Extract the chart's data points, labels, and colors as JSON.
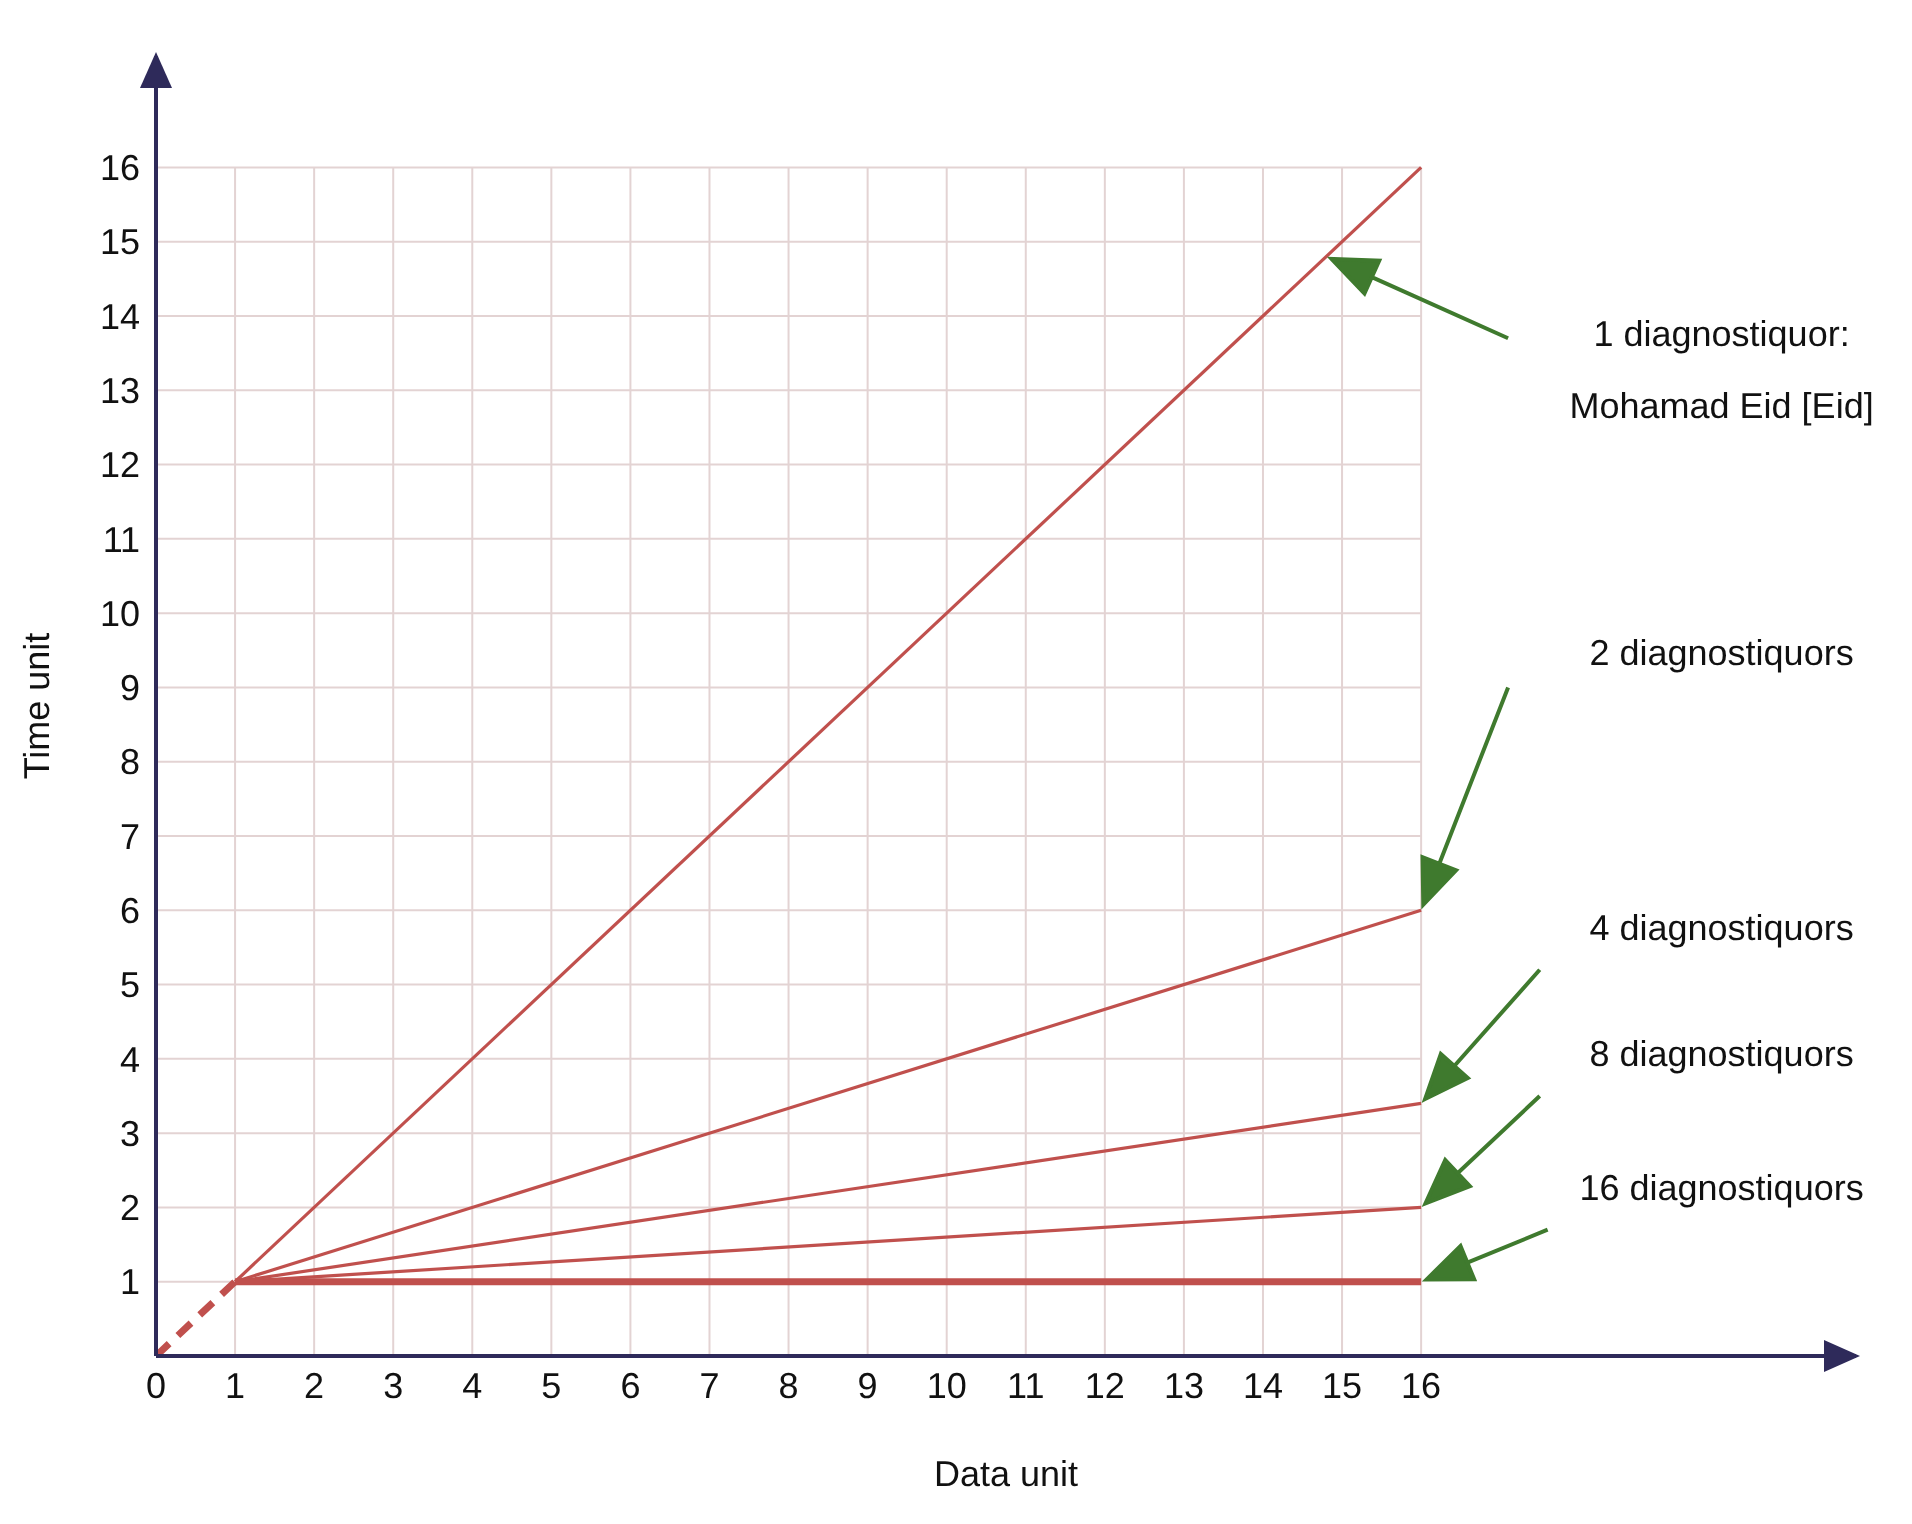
{
  "chart_data": {
    "type": "line",
    "xlabel": "Data unit",
    "ylabel": "Time unit",
    "xlim": [
      0,
      21.5
    ],
    "ylim": [
      0,
      17.5
    ],
    "xticks": [
      0,
      1,
      2,
      3,
      4,
      5,
      6,
      7,
      8,
      9,
      10,
      11,
      12,
      13,
      14,
      15,
      16
    ],
    "yticks": [
      1,
      2,
      3,
      4,
      5,
      6,
      7,
      8,
      9,
      10,
      11,
      12,
      13,
      14,
      15,
      16
    ],
    "grid": true,
    "marker": "none",
    "series": [
      {
        "name": "1  diagnostiquor:\nMohamad Eid [Eid]",
        "color": "#c0504d",
        "x": [
          1,
          16
        ],
        "values": [
          1,
          16
        ]
      },
      {
        "name": "2  diagnostiquors",
        "color": "#c0504d",
        "x": [
          1,
          16
        ],
        "values": [
          1,
          6
        ]
      },
      {
        "name": "4  diagnostiquors",
        "color": "#c0504d",
        "x": [
          1,
          16
        ],
        "values": [
          1,
          3.4
        ]
      },
      {
        "name": "8  diagnostiquors",
        "color": "#c0504d",
        "x": [
          1,
          16
        ],
        "values": [
          1,
          2
        ]
      },
      {
        "name": "16  diagnostiquors",
        "color": "#c0504d",
        "x": [
          1,
          16
        ],
        "values": [
          1,
          1
        ]
      },
      {
        "color": "#c0504d",
        "x": [
          0,
          1
        ],
        "values": [
          0,
          1
        ],
        "line_style": "dashed"
      }
    ]
  }
}
